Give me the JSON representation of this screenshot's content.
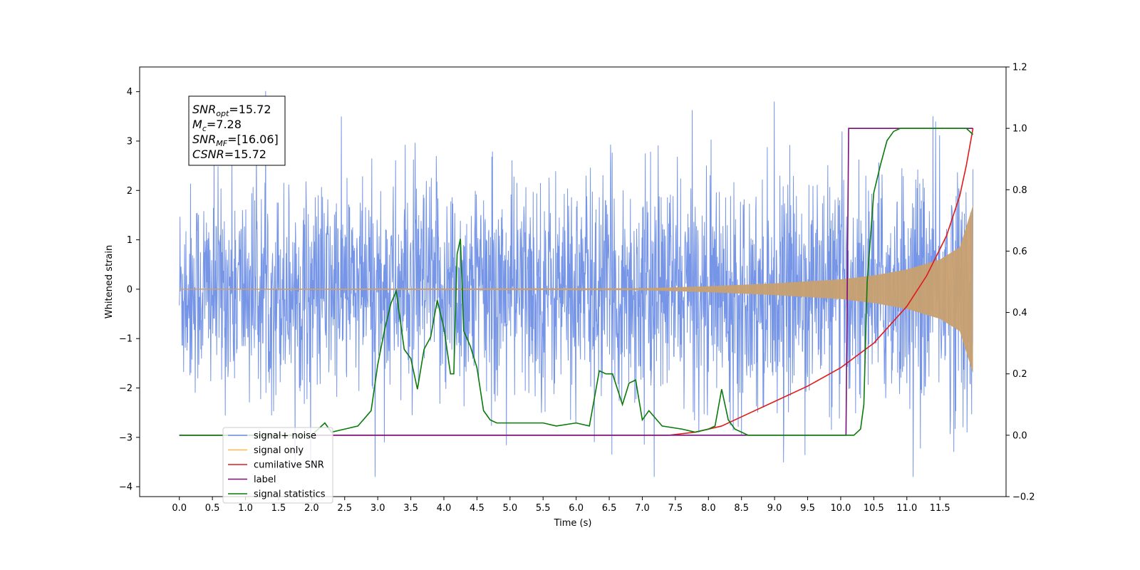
{
  "chart_data": {
    "type": "line",
    "title": "",
    "xlabel": "Time (s)",
    "ylabel": "Whitened strain",
    "xlim": [
      -0.6,
      12.5
    ],
    "ylim": [
      -4.2,
      4.5
    ],
    "y2lim": [
      -0.2,
      1.2
    ],
    "xticks": [
      "0.0",
      "0.5",
      "1.0",
      "1.5",
      "2.0",
      "2.5",
      "3.0",
      "3.5",
      "4.0",
      "4.5",
      "5.0",
      "5.5",
      "6.0",
      "6.5",
      "7.0",
      "7.5",
      "8.0",
      "8.5",
      "9.0",
      "9.5",
      "10.0",
      "10.5",
      "11.0",
      "11.5"
    ],
    "yticks": [
      "4",
      "3",
      "2",
      "1",
      "0",
      "−1",
      "−2",
      "−3",
      "−4"
    ],
    "y2ticks": [
      "1.2",
      "1.0",
      "0.8",
      "0.6",
      "0.4",
      "0.2",
      "0.0",
      "−0.2"
    ],
    "grid": false,
    "legend_position": "lower-left",
    "annotation": {
      "lines": [
        {
          "sym": "SNR",
          "sub": "opt",
          "value": "=15.72"
        },
        {
          "sym": "M",
          "sub": "c",
          "value": "=7.28"
        },
        {
          "sym": "SNR",
          "sub": "MF",
          "value": "=[16.06]"
        },
        {
          "sym": "CSNR",
          "sub": "",
          "value": "=15.72"
        }
      ]
    },
    "series": [
      {
        "name": "signal+ noise",
        "color": "#6f8fe6",
        "axis": "left",
        "kind": "noise",
        "envelope": {
          "x": [
            0,
            2,
            4,
            6,
            8,
            10,
            11.5,
            12
          ],
          "amp": [
            1.7,
            1.7,
            1.8,
            1.8,
            1.8,
            1.8,
            2.0,
            2.2
          ]
        }
      },
      {
        "name": "signal only",
        "color": "#c8a070",
        "axis": "left",
        "kind": "chirp",
        "envelope": {
          "x": [
            0,
            7.0,
            8.0,
            9.0,
            10.0,
            10.5,
            11.0,
            11.5,
            11.8,
            12.0
          ],
          "amp": [
            0.01,
            0.02,
            0.06,
            0.12,
            0.2,
            0.28,
            0.4,
            0.6,
            0.85,
            1.7
          ]
        }
      },
      {
        "name": "cumilative SNR",
        "color": "#e01a1a",
        "axis": "right",
        "x": [
          0,
          7.4,
          7.8,
          8.2,
          8.6,
          9.0,
          9.5,
          10.0,
          10.5,
          11.0,
          11.3,
          11.6,
          11.8,
          11.9,
          12.0
        ],
        "y": [
          0.0,
          0.0,
          0.01,
          0.03,
          0.07,
          0.11,
          0.16,
          0.22,
          0.3,
          0.42,
          0.52,
          0.65,
          0.78,
          0.88,
          1.0
        ]
      },
      {
        "name": "label",
        "color": "#7a0f7a",
        "axis": "right",
        "x": [
          0,
          10.08,
          10.12,
          12.0
        ],
        "y": [
          0.0,
          0.0,
          1.0,
          1.0
        ]
      },
      {
        "name": "signal statistics",
        "color": "#0a7a0a",
        "axis": "right",
        "x": [
          0,
          1.0,
          2.0,
          2.2,
          2.3,
          2.5,
          2.7,
          2.9,
          3.0,
          3.1,
          3.2,
          3.28,
          3.4,
          3.5,
          3.6,
          3.7,
          3.8,
          3.9,
          4.0,
          4.1,
          4.15,
          4.2,
          4.25,
          4.3,
          4.4,
          4.5,
          4.6,
          4.7,
          4.8,
          5.0,
          5.3,
          5.5,
          5.7,
          6.0,
          6.2,
          6.35,
          6.45,
          6.55,
          6.7,
          6.8,
          6.9,
          7.0,
          7.1,
          7.3,
          7.6,
          7.8,
          8.0,
          8.1,
          8.2,
          8.3,
          8.4,
          8.6,
          9.0,
          9.5,
          10.0,
          10.2,
          10.3,
          10.35,
          10.4,
          10.5,
          10.6,
          10.7,
          10.8,
          10.9,
          11.0,
          11.9,
          12.0
        ],
        "y": [
          0.0,
          0.0,
          0.0,
          0.04,
          0.01,
          0.02,
          0.03,
          0.08,
          0.23,
          0.34,
          0.43,
          0.47,
          0.28,
          0.25,
          0.15,
          0.28,
          0.32,
          0.44,
          0.35,
          0.2,
          0.2,
          0.59,
          0.64,
          0.34,
          0.29,
          0.22,
          0.08,
          0.05,
          0.04,
          0.04,
          0.04,
          0.04,
          0.03,
          0.04,
          0.03,
          0.21,
          0.2,
          0.2,
          0.1,
          0.17,
          0.18,
          0.05,
          0.08,
          0.03,
          0.02,
          0.01,
          0.02,
          0.03,
          0.15,
          0.05,
          0.02,
          0.0,
          0.0,
          0.0,
          0.0,
          0.0,
          0.02,
          0.1,
          0.5,
          0.79,
          0.88,
          0.96,
          0.99,
          1.0,
          1.0,
          1.0,
          0.98
        ]
      }
    ]
  },
  "legend": {
    "items": [
      {
        "label": "signal+ noise",
        "color": "#6f8fe6"
      },
      {
        "label": "signal only",
        "color": "#ffb84a"
      },
      {
        "label": "cumilative SNR",
        "color": "#e01a1a"
      },
      {
        "label": "label",
        "color": "#7a0f7a"
      },
      {
        "label": "signal statistics",
        "color": "#0a7a0a"
      }
    ]
  }
}
